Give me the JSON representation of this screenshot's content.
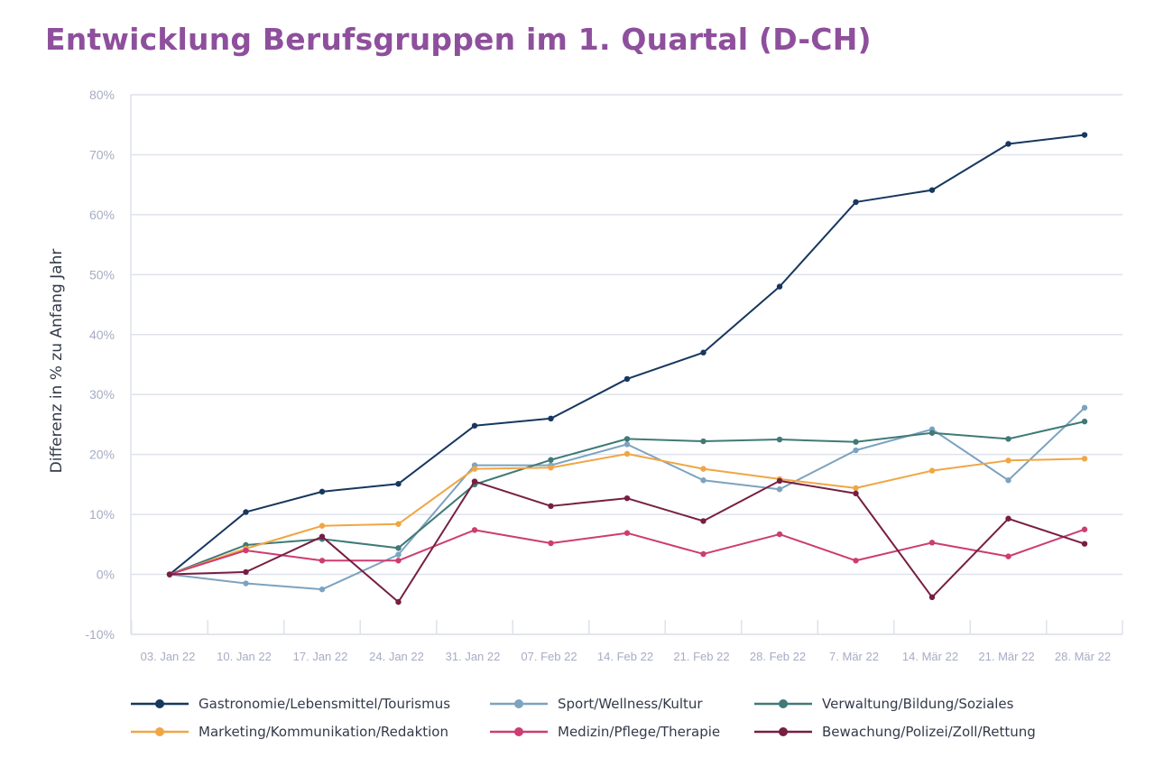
{
  "chart_data": {
    "type": "line",
    "title": "Entwicklung Berufsgruppen im 1. Quartal (D-CH)",
    "ylabel": "Differenz in % zu Anfang Jahr",
    "xlabel": "",
    "ylim": [
      -10,
      80
    ],
    "yticks": [
      -10,
      0,
      10,
      20,
      30,
      40,
      50,
      60,
      70,
      80
    ],
    "ytick_labels": [
      "-10%",
      "0%",
      "10%",
      "20%",
      "30%",
      "40%",
      "50%",
      "60%",
      "70%",
      "80%"
    ],
    "grid": "horizontal",
    "legend_position": "bottom",
    "categories": [
      "03. Jan 22",
      "10. Jan 22",
      "17. Jan 22",
      "24. Jan 22",
      "31. Jan 22",
      "07. Feb 22",
      "14. Feb 22",
      "21. Feb 22",
      "28. Feb 22",
      "7. Mär 22",
      "14. Mär 22",
      "21. Mär 22",
      "28. Mär 22"
    ],
    "series": [
      {
        "name": "Gastronomie/Lebensmittel/Tourismus",
        "color": "#17375e",
        "values": [
          0,
          10.4,
          13.8,
          15.1,
          24.8,
          26.0,
          32.6,
          37.0,
          48.0,
          62.1,
          64.1,
          71.8,
          73.3
        ]
      },
      {
        "name": "Sport/Wellness/Kultur",
        "color": "#7ca3c0",
        "values": [
          0,
          -1.5,
          -2.5,
          3.3,
          18.2,
          18.2,
          21.7,
          15.7,
          14.2,
          20.7,
          24.2,
          15.7,
          27.8
        ]
      },
      {
        "name": "Verwaltung/Bildung/Soziales",
        "color": "#3f7a78",
        "values": [
          0,
          4.9,
          5.9,
          4.4,
          15.0,
          19.1,
          22.6,
          22.2,
          22.5,
          22.1,
          23.6,
          22.6,
          25.5
        ]
      },
      {
        "name": "Marketing/Kommunikation/Redaktion",
        "color": "#f0a645",
        "values": [
          0,
          4.3,
          8.1,
          8.4,
          17.6,
          17.8,
          20.1,
          17.6,
          15.9,
          14.4,
          17.3,
          19.0,
          19.3
        ]
      },
      {
        "name": "Medizin/Pflege/Therapie",
        "color": "#cc3d70",
        "values": [
          0,
          4.0,
          2.3,
          2.3,
          7.4,
          5.2,
          6.9,
          3.4,
          6.7,
          2.3,
          5.3,
          3.0,
          7.5
        ]
      },
      {
        "name": "Bewachung/Polizei/Zoll/Rettung",
        "color": "#761f42",
        "values": [
          0,
          0.4,
          6.3,
          -4.6,
          15.5,
          11.4,
          12.7,
          8.9,
          15.6,
          13.5,
          -3.8,
          9.3,
          5.1
        ]
      }
    ]
  }
}
